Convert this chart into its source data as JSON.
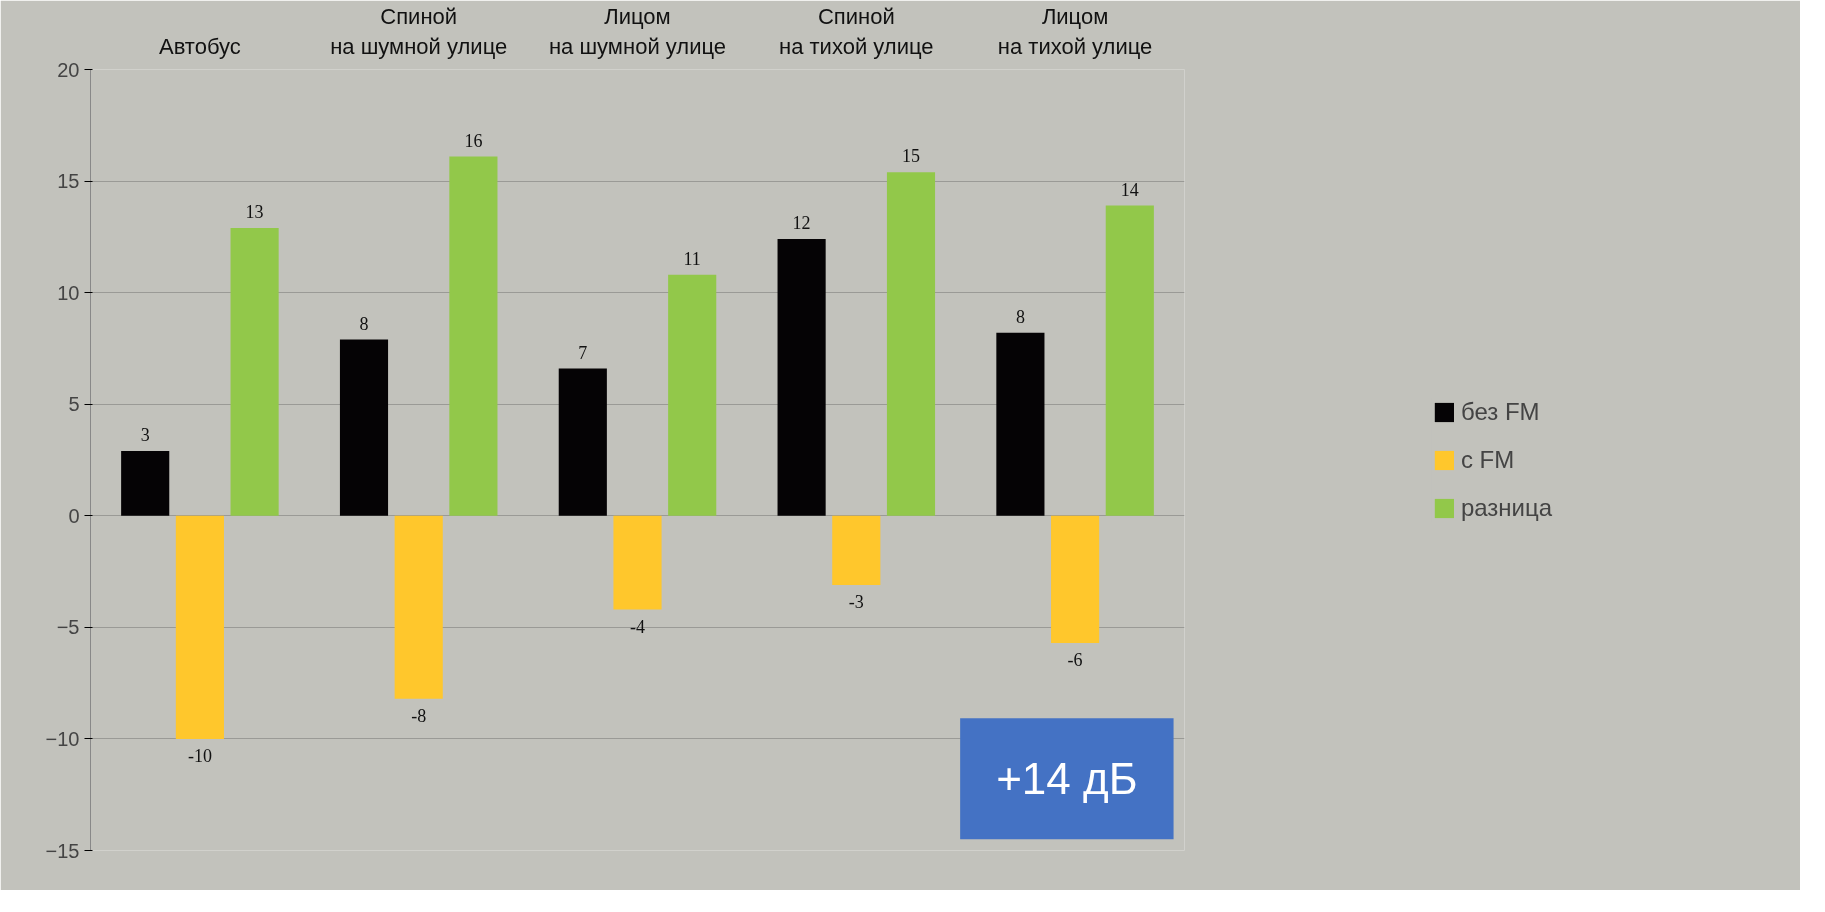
{
  "chart_data": {
    "type": "bar",
    "categories": [
      "Автобус",
      "Спиной\nна шумной улице",
      "Лицом\nна шумной улице",
      "Спиной\nна тихой улице",
      "Лицом\nна тихой улице"
    ],
    "series": [
      {
        "name": "без FM",
        "color": "#050305",
        "values": [
          2.9,
          7.9,
          6.6,
          12.4,
          8.2
        ],
        "value_labels": [
          "3",
          "8",
          "7",
          "12",
          "8"
        ]
      },
      {
        "name": "с FM",
        "color": "#ffc72c",
        "values": [
          -10,
          -8.2,
          -4.2,
          -3.1,
          -5.7
        ],
        "value_labels": [
          "-10",
          "-8",
          "-4",
          "-3",
          "-6"
        ]
      },
      {
        "name": "разница",
        "color": "#92c84a",
        "values": [
          12.9,
          16.1,
          10.8,
          15.4,
          13.9
        ],
        "value_labels": [
          "13",
          "16",
          "11",
          "15",
          "14"
        ]
      }
    ],
    "ylim": [
      -15,
      20
    ],
    "yticks": [
      -15,
      -10,
      -5,
      0,
      5,
      10,
      15,
      20
    ],
    "grid": "y",
    "legend": "right",
    "annotations": [
      "+14 дБ"
    ]
  }
}
